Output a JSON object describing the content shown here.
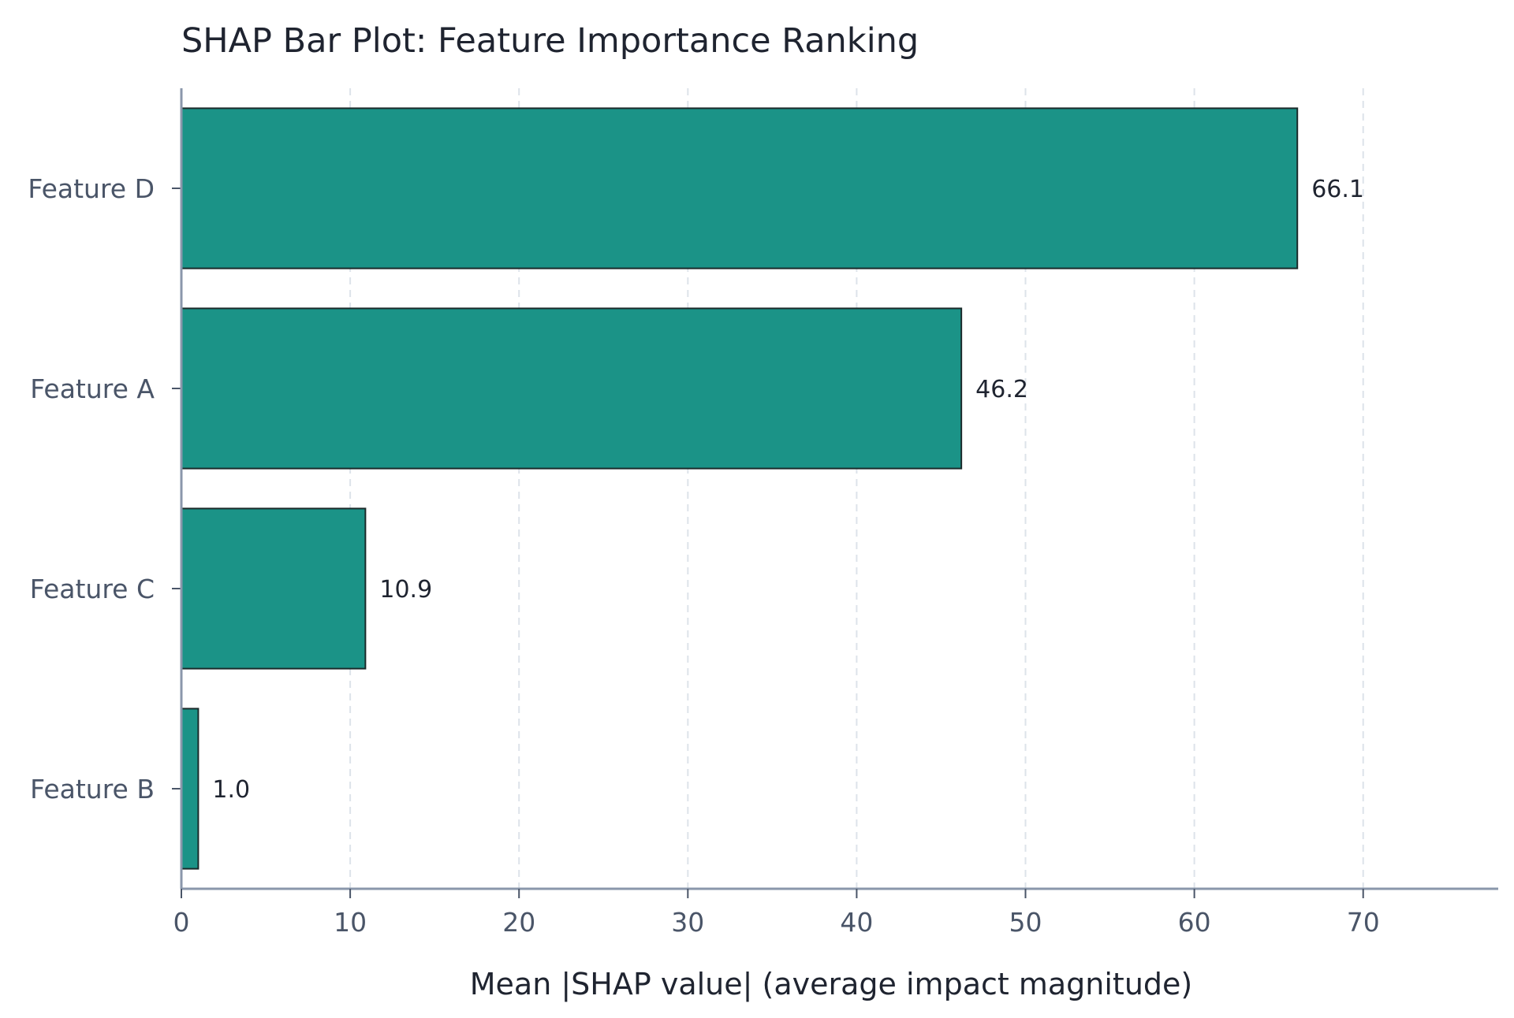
{
  "chart_data": {
    "type": "bar",
    "orientation": "horizontal",
    "title": "SHAP Bar Plot: Feature Importance Ranking",
    "xlabel": "Mean |SHAP value| (average impact magnitude)",
    "ylabel": "",
    "categories": [
      "Feature D",
      "Feature A",
      "Feature C",
      "Feature B"
    ],
    "values": [
      66.1,
      46.2,
      10.9,
      1.0
    ],
    "data_labels": [
      "66.1",
      "46.2",
      "10.9",
      "1.0"
    ],
    "xlim": [
      0,
      78
    ],
    "xticks": [
      0,
      10,
      20,
      30,
      40,
      50,
      60,
      70
    ],
    "xtick_labels": [
      "0",
      "10",
      "20",
      "30",
      "40",
      "50",
      "60",
      "70"
    ],
    "grid": "vertical dashed",
    "legend": "none",
    "colors": {
      "bar_fill": "#1b9387",
      "bar_edge": "#1a2a2a",
      "axis": "#8a97ab",
      "grid": "#dde3ea"
    }
  }
}
